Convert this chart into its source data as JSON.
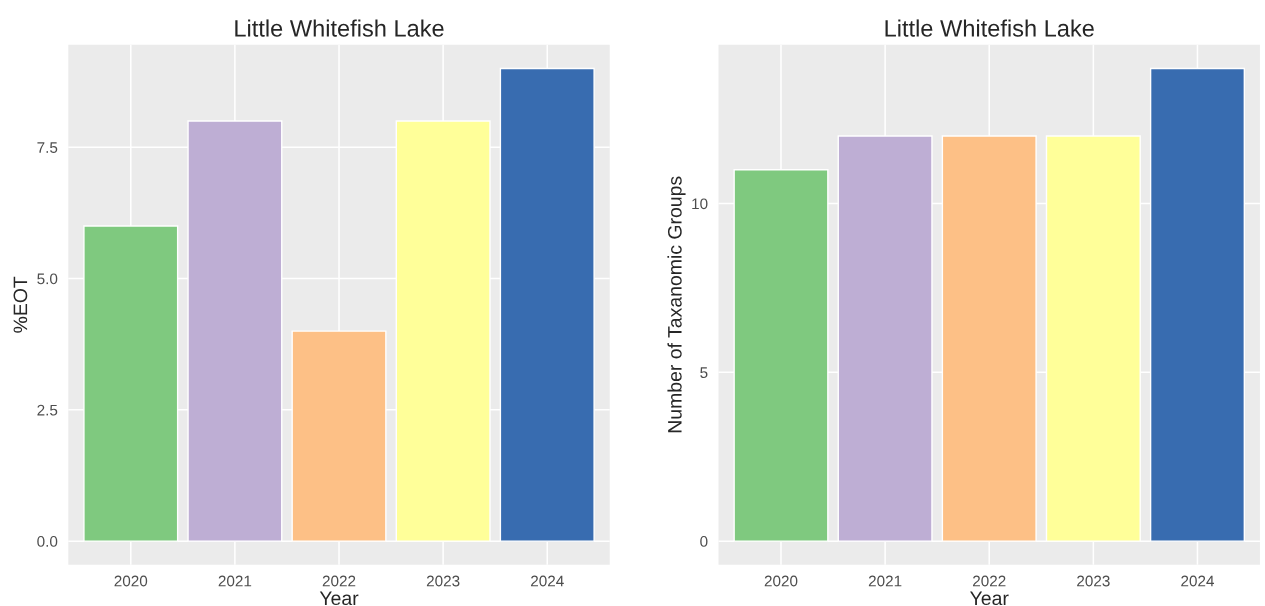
{
  "chart_data": [
    {
      "type": "bar",
      "title": "Little Whitefish Lake",
      "xlabel": "Year",
      "ylabel": "%EOT",
      "categories": [
        "2020",
        "2021",
        "2022",
        "2023",
        "2024"
      ],
      "values": [
        6,
        8,
        4,
        8,
        9
      ],
      "colors": [
        "#7fc97f",
        "#beaed4",
        "#fdc086",
        "#ffff99",
        "#386cb0"
      ],
      "ylim": [
        -0.45,
        9.45
      ],
      "yticks": [
        {
          "value": 0,
          "label": "0.0"
        },
        {
          "value": 2.5,
          "label": "2.5"
        },
        {
          "value": 5,
          "label": "5.0"
        },
        {
          "value": 7.5,
          "label": "7.5"
        }
      ],
      "grid": true,
      "legend": false
    },
    {
      "type": "bar",
      "title": "Little Whitefish Lake",
      "xlabel": "Year",
      "ylabel": "Number of Taxanomic Groups",
      "categories": [
        "2020",
        "2021",
        "2022",
        "2023",
        "2024"
      ],
      "values": [
        11,
        12,
        12,
        12,
        14
      ],
      "colors": [
        "#7fc97f",
        "#beaed4",
        "#fdc086",
        "#ffff99",
        "#386cb0"
      ],
      "ylim": [
        -0.7,
        14.7
      ],
      "yticks": [
        0,
        5,
        10
      ],
      "grid": true,
      "legend": false
    }
  ]
}
